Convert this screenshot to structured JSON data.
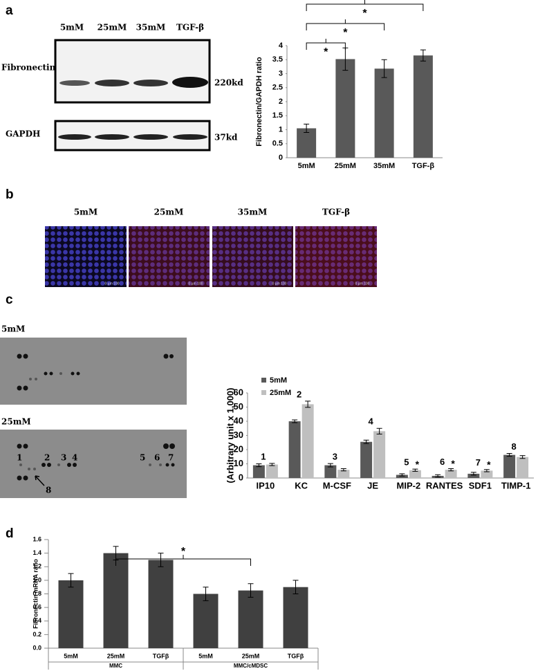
{
  "panel_labels": [
    "a",
    "b",
    "c",
    "d"
  ],
  "western_blot": {
    "lanes": [
      "5mM",
      "25mM",
      "35mM",
      "TGF-β"
    ],
    "rows": [
      {
        "protein": "Fibronectin",
        "size": "220kd"
      },
      {
        "protein": "GAPDH",
        "size": "37kd"
      }
    ]
  },
  "immunofluorescence": {
    "conditions": [
      "5mM",
      "25mM",
      "35mM",
      "TGF-β"
    ],
    "scale_bar": "0  µm  100"
  },
  "cytokine_array": {
    "conditions": [
      "5mM",
      "25mM"
    ],
    "spot_numbers": [
      "1",
      "2",
      "3",
      "4",
      "5",
      "6",
      "7",
      "8"
    ]
  },
  "chart_data": [
    {
      "type": "bar",
      "y_label": "Fibronectin/GAPDH ratio",
      "categories": [
        "5mM",
        "25mM",
        "35mM",
        "TGF-β"
      ],
      "values": [
        1.05,
        3.52,
        3.18,
        3.65
      ],
      "errors": [
        0.15,
        0.4,
        0.32,
        0.2
      ],
      "color": "#595959",
      "ylim": [
        0,
        4
      ],
      "yticks": [
        0,
        0.5,
        1,
        1.5,
        2,
        2.5,
        3,
        3.5,
        4
      ],
      "significance": [
        {
          "from": 0,
          "to": 1,
          "label": "*"
        },
        {
          "from": 0,
          "to": 2,
          "label": "*"
        },
        {
          "from": 0,
          "to": 3,
          "label": "*"
        }
      ]
    },
    {
      "type": "grouped_bar",
      "y_label": "(Arbitrary unit x 1,000)",
      "categories": [
        "IP10",
        "KC",
        "M-CSF",
        "JE",
        "MIP-2",
        "RANTES",
        "SDF1",
        "TIMP-1"
      ],
      "series": [
        {
          "name": "5mM",
          "color": "#595959",
          "values": [
            9,
            40,
            9,
            25.5,
            2.2,
            1.5,
            3,
            16.3
          ],
          "errors": [
            1,
            1,
            1.2,
            1.2,
            0.8,
            0.8,
            1,
            1
          ]
        },
        {
          "name": "25mM",
          "color": "#bfbfbf",
          "values": [
            9.5,
            52,
            5.8,
            33,
            5.5,
            5.8,
            5.2,
            14.8
          ],
          "errors": [
            0.8,
            2.2,
            0.8,
            2,
            0.8,
            0.8,
            0.8,
            1
          ]
        }
      ],
      "ylim": [
        0,
        60
      ],
      "yticks": [
        0,
        10,
        20,
        30,
        40,
        50,
        60
      ],
      "group_labels": [
        "1",
        "2",
        "3",
        "4",
        "5",
        "6",
        "7",
        "8"
      ],
      "significance": [
        {
          "series": 1,
          "category": 4,
          "label": "*"
        },
        {
          "series": 1,
          "category": 5,
          "label": "*"
        },
        {
          "series": 1,
          "category": 6,
          "label": "*"
        }
      ]
    },
    {
      "type": "bar",
      "y_label": "Fibronectin mRNA ratio",
      "categories": [
        "5mM",
        "25mM",
        "TGFβ",
        "5mM",
        "25mM",
        "TGFβ"
      ],
      "groups": [
        {
          "name": "MMC",
          "size": 3
        },
        {
          "name": "MMC/cMDSC",
          "size": 3
        }
      ],
      "values": [
        1.0,
        1.4,
        1.3,
        0.8,
        0.85,
        0.9
      ],
      "errors": [
        0.1,
        0.1,
        0.1,
        0.1,
        0.1,
        0.1
      ],
      "color": "#404040",
      "ylim": [
        0,
        1.6
      ],
      "yticks": [
        {
          "value": 0,
          "label": "0.0"
        },
        {
          "value": 0.2,
          "label": "0.2"
        },
        {
          "value": 0.4,
          "label": "0.4"
        },
        {
          "value": 0.6,
          "label": "0.6"
        },
        {
          "value": 0.8,
          "label": "0.8"
        },
        {
          "value": 1.0,
          "label": "1.0"
        },
        {
          "value": 1.2,
          "label": "1.2"
        },
        {
          "value": 1.4,
          "label": "1.4"
        },
        {
          "value": 1.6,
          "label": "1.6"
        }
      ],
      "significance": [
        {
          "from": 1,
          "to": 4,
          "label": "*"
        }
      ]
    }
  ]
}
